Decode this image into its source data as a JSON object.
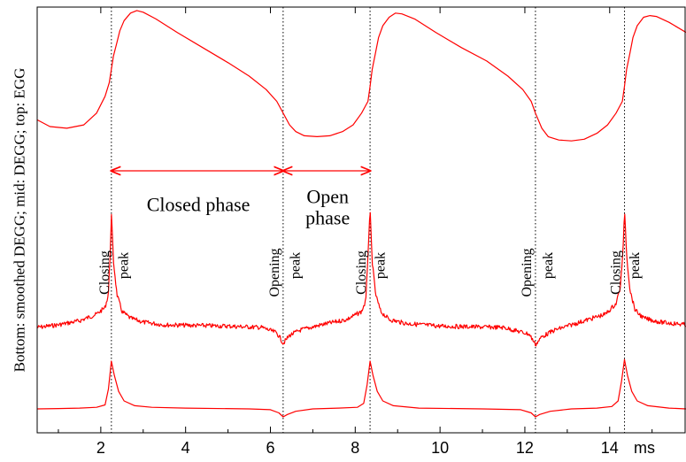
{
  "chart_data": {
    "type": "line",
    "ylabel": "Bottom: smoothed DEGG; mid: DEGG; top: EGG",
    "xlabel": "",
    "x_unit": "ms",
    "xlim": [
      0.5,
      15.8
    ],
    "xticks": [
      2,
      4,
      6,
      8,
      10,
      12,
      14
    ],
    "grid": false,
    "closing_instants_ms": [
      2.25,
      8.35,
      14.35
    ],
    "opening_instants_ms": [
      6.3,
      12.25
    ],
    "series": [
      {
        "key": "egg",
        "x": [
          0.5,
          0.8,
          1.2,
          1.6,
          1.9,
          2.1,
          2.2,
          2.25,
          2.3,
          2.38,
          2.45,
          2.55,
          2.7,
          2.85,
          3.0,
          3.3,
          3.8,
          4.4,
          5.0,
          5.5,
          5.9,
          6.15,
          6.3,
          6.45,
          6.6,
          6.8,
          7.1,
          7.4,
          7.7,
          7.95,
          8.15,
          8.3,
          8.35,
          8.4,
          8.48,
          8.55,
          8.65,
          8.8,
          8.95,
          9.1,
          9.4,
          9.9,
          10.5,
          11.1,
          11.6,
          11.95,
          12.15,
          12.25,
          12.4,
          12.55,
          12.8,
          13.1,
          13.4,
          13.7,
          13.95,
          14.15,
          14.3,
          14.35,
          14.4,
          14.48,
          14.55,
          14.65,
          14.8,
          14.95,
          15.1,
          15.4,
          15.8
        ],
        "y": [
          0.34,
          0.3,
          0.29,
          0.31,
          0.38,
          0.48,
          0.56,
          0.64,
          0.72,
          0.8,
          0.87,
          0.93,
          0.975,
          0.99,
          0.98,
          0.94,
          0.86,
          0.77,
          0.68,
          0.6,
          0.52,
          0.45,
          0.38,
          0.31,
          0.27,
          0.245,
          0.24,
          0.245,
          0.27,
          0.31,
          0.38,
          0.45,
          0.54,
          0.64,
          0.74,
          0.83,
          0.9,
          0.95,
          0.975,
          0.97,
          0.94,
          0.86,
          0.77,
          0.69,
          0.6,
          0.52,
          0.45,
          0.38,
          0.29,
          0.24,
          0.22,
          0.215,
          0.225,
          0.26,
          0.31,
          0.38,
          0.45,
          0.54,
          0.64,
          0.74,
          0.83,
          0.9,
          0.95,
          0.96,
          0.955,
          0.92,
          0.86
        ]
      },
      {
        "key": "degg",
        "x": [
          0.5,
          1.0,
          1.5,
          1.9,
          2.1,
          2.18,
          2.22,
          2.25,
          2.3,
          2.38,
          2.5,
          2.7,
          3.0,
          3.5,
          5.0,
          5.8,
          6.15,
          6.25,
          6.3,
          6.45,
          6.7,
          7.2,
          7.8,
          8.15,
          8.25,
          8.3,
          8.35,
          8.4,
          8.48,
          8.6,
          8.8,
          9.2,
          10.0,
          11.5,
          12.1,
          12.2,
          12.25,
          12.4,
          12.7,
          13.3,
          13.9,
          14.15,
          14.25,
          14.32,
          14.35,
          14.4,
          14.48,
          14.6,
          14.8,
          15.2,
          15.8
        ],
        "y": [
          0.0,
          0.02,
          0.05,
          0.1,
          0.15,
          0.25,
          0.55,
          0.85,
          0.5,
          0.25,
          0.12,
          0.07,
          0.04,
          0.02,
          0.01,
          0.0,
          -0.04,
          -0.09,
          -0.12,
          -0.06,
          -0.02,
          0.02,
          0.06,
          0.12,
          0.2,
          0.55,
          0.88,
          0.5,
          0.25,
          0.12,
          0.06,
          0.03,
          0.01,
          0.0,
          -0.05,
          -0.1,
          -0.13,
          -0.07,
          -0.02,
          0.04,
          0.1,
          0.18,
          0.3,
          0.6,
          0.9,
          0.55,
          0.28,
          0.13,
          0.07,
          0.04,
          0.02
        ]
      },
      {
        "key": "smoothed_degg",
        "x": [
          0.5,
          1.0,
          1.5,
          1.9,
          2.1,
          2.18,
          2.25,
          2.32,
          2.42,
          2.55,
          2.8,
          3.2,
          4.0,
          5.5,
          6.0,
          6.2,
          6.3,
          6.4,
          6.6,
          7.0,
          7.6,
          8.05,
          8.2,
          8.28,
          8.35,
          8.42,
          8.52,
          8.65,
          8.9,
          9.5,
          11.0,
          11.9,
          12.15,
          12.25,
          12.35,
          12.6,
          13.1,
          13.7,
          14.05,
          14.2,
          14.28,
          14.35,
          14.42,
          14.52,
          14.65,
          14.9,
          15.4,
          15.8
        ],
        "y": [
          0.0,
          0.005,
          0.01,
          0.02,
          0.05,
          0.25,
          0.6,
          0.42,
          0.22,
          0.1,
          0.04,
          0.02,
          0.01,
          0.0,
          -0.01,
          -0.05,
          -0.1,
          -0.07,
          -0.03,
          0.0,
          0.01,
          0.02,
          0.07,
          0.3,
          0.6,
          0.42,
          0.22,
          0.1,
          0.04,
          0.01,
          0.0,
          -0.01,
          -0.05,
          -0.1,
          -0.07,
          -0.03,
          0.0,
          0.01,
          0.03,
          0.1,
          0.35,
          0.62,
          0.42,
          0.22,
          0.1,
          0.04,
          0.01,
          0.0
        ]
      }
    ],
    "annotations": [
      {
        "text": "Closed phase",
        "x": 4.3
      },
      {
        "text": "Open",
        "x": 7.35
      },
      {
        "text": "phase",
        "x": 7.35
      },
      {
        "text": "Closing",
        "x": 2.1
      },
      {
        "text": "peak",
        "x": 2.55
      },
      {
        "text": "Opening",
        "x": 6.1
      },
      {
        "text": "peak",
        "x": 6.6
      },
      {
        "text": "Closing",
        "x": 8.15
      },
      {
        "text": "peak",
        "x": 8.6
      },
      {
        "text": "Opening",
        "x": 12.05
      },
      {
        "text": "peak",
        "x": 12.55
      },
      {
        "text": "Closing",
        "x": 14.15
      },
      {
        "text": "peak",
        "x": 14.6
      }
    ],
    "colors": {
      "curve": "#ff0000",
      "arrow": "#ff0000",
      "guide": "#000000",
      "axis": "#000000"
    }
  }
}
